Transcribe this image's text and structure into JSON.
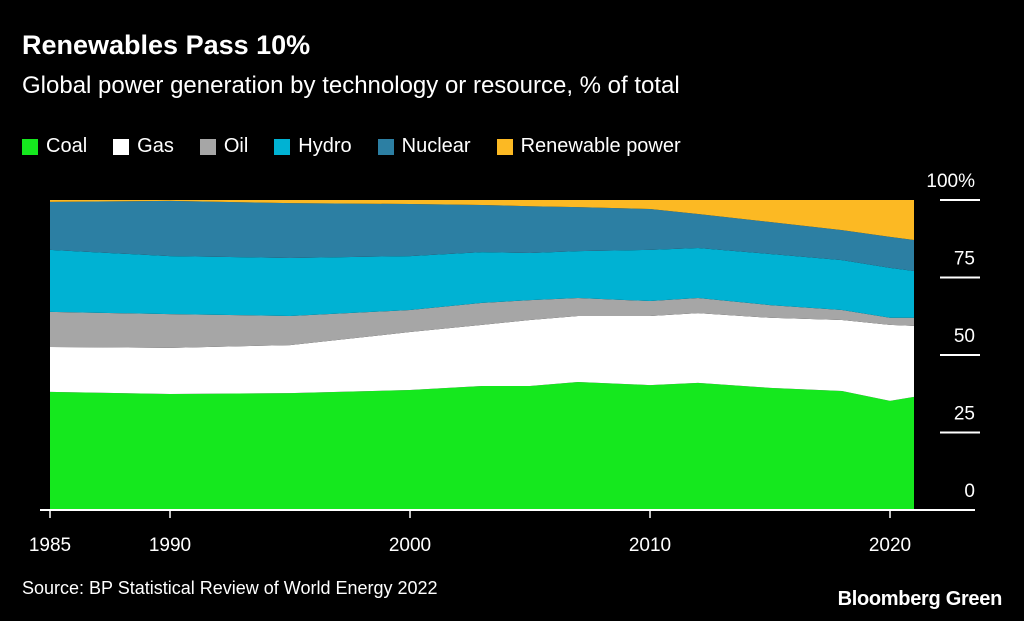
{
  "title": "Renewables Pass 10%",
  "subtitle": "Global power generation by technology or resource, % of total",
  "source": "Source: BP Statistical Review of World Energy 2022",
  "brand": "Bloomberg Green",
  "chart_data": {
    "type": "area",
    "stacked": true,
    "title": "Renewables Pass 10%",
    "subtitle": "Global power generation by technology or resource, % of total",
    "xlabel": "",
    "ylabel": "",
    "xlim": [
      1985,
      2021
    ],
    "ylim": [
      0,
      100
    ],
    "x_ticks": [
      1985,
      1990,
      2000,
      2010,
      2020
    ],
    "y_ticks": [
      {
        "value": 0,
        "label": "0"
      },
      {
        "value": 25,
        "label": "25"
      },
      {
        "value": 50,
        "label": "50"
      },
      {
        "value": 75,
        "label": "75"
      },
      {
        "value": 100,
        "label": "100%"
      }
    ],
    "y_axis_side": "right",
    "grid": false,
    "legend_position": "top-left",
    "x": [
      1985,
      1990,
      1995,
      2000,
      2003,
      2005,
      2007,
      2010,
      2012,
      2015,
      2018,
      2020,
      2021
    ],
    "series": [
      {
        "name": "Coal",
        "color": "#15e81e",
        "values": [
          38.1,
          37.4,
          37.7,
          38.7,
          40.0,
          40.0,
          41.3,
          40.3,
          41.0,
          39.4,
          38.4,
          35.2,
          36.5
        ]
      },
      {
        "name": "Gas",
        "color": "#ffffff",
        "values": [
          14.5,
          14.9,
          15.5,
          18.7,
          19.7,
          21.3,
          21.3,
          22.3,
          22.5,
          22.6,
          22.9,
          24.5,
          22.9
        ]
      },
      {
        "name": "Oil",
        "color": "#a6a6a6",
        "values": [
          11.3,
          10.9,
          9.4,
          7.1,
          7.1,
          6.4,
          5.8,
          4.8,
          4.9,
          4.1,
          3.2,
          2.3,
          2.6
        ]
      },
      {
        "name": "Hydro",
        "color": "#00b2d3",
        "values": [
          20.0,
          18.7,
          18.7,
          17.4,
          16.4,
          15.2,
          15.1,
          16.5,
          16.1,
          16.5,
          16.1,
          16.1,
          15.1
        ]
      },
      {
        "name": "Nuclear",
        "color": "#2c7fa3",
        "values": [
          15.5,
          17.8,
          17.7,
          16.8,
          15.2,
          15.1,
          14.2,
          13.2,
          11.0,
          10.3,
          9.7,
          10.0,
          10.0
        ]
      },
      {
        "name": "Renewable power",
        "color": "#fcb923",
        "values": [
          0.6,
          0.3,
          1.0,
          1.3,
          1.6,
          2.0,
          2.3,
          2.9,
          4.5,
          7.1,
          9.7,
          11.9,
          12.9
        ]
      }
    ]
  }
}
